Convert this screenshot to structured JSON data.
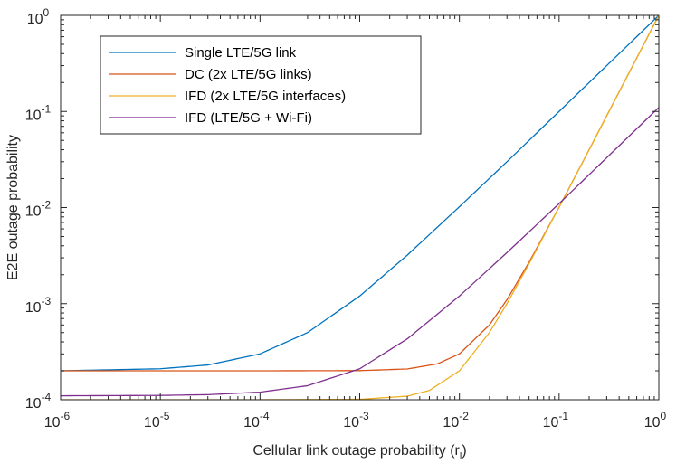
{
  "chart_data": {
    "type": "line",
    "title": "",
    "xlabel": "Cellular link outage probability (r",
    "xlabel_subscript": "l",
    "xlabel_suffix": ")",
    "ylabel": "E2E outage probability",
    "xscale": "log",
    "yscale": "log",
    "xlim": [
      1e-06,
      1
    ],
    "ylim": [
      0.0001,
      1
    ],
    "grid": false,
    "legend_position": "top-left",
    "x_ticks": [
      {
        "value": 1e-06,
        "base": "10",
        "exp": "-6"
      },
      {
        "value": 1e-05,
        "base": "10",
        "exp": "-5"
      },
      {
        "value": 0.0001,
        "base": "10",
        "exp": "-4"
      },
      {
        "value": 0.001,
        "base": "10",
        "exp": "-3"
      },
      {
        "value": 0.01,
        "base": "10",
        "exp": "-2"
      },
      {
        "value": 0.1,
        "base": "10",
        "exp": "-1"
      },
      {
        "value": 1,
        "base": "10",
        "exp": "0"
      }
    ],
    "y_ticks": [
      {
        "value": 0.0001,
        "base": "10",
        "exp": "-4"
      },
      {
        "value": 0.001,
        "base": "10",
        "exp": "-3"
      },
      {
        "value": 0.01,
        "base": "10",
        "exp": "-2"
      },
      {
        "value": 0.1,
        "base": "10",
        "exp": "-1"
      },
      {
        "value": 1,
        "base": "10",
        "exp": "0"
      }
    ],
    "series": [
      {
        "name": "Single LTE/5G link",
        "color": "#0072BD",
        "x": [
          1e-06,
          1e-05,
          3e-05,
          0.0001,
          0.0003,
          0.001,
          0.003,
          0.01,
          0.03,
          0.1,
          0.3,
          1
        ],
        "y": [
          0.0002,
          0.00021,
          0.00023,
          0.0003,
          0.0005,
          0.0012,
          0.0032,
          0.0102,
          0.03,
          0.1,
          0.3,
          1.0
        ]
      },
      {
        "name": "DC (2x LTE/5G links)",
        "color": "#D95319",
        "x": [
          1e-06,
          0.0001,
          0.001,
          0.003,
          0.006,
          0.01,
          0.02,
          0.03,
          0.05,
          0.1,
          0.2,
          0.3,
          0.5,
          1
        ],
        "y": [
          0.0002,
          0.0002,
          0.000201,
          0.000209,
          0.000236,
          0.0003,
          0.0006,
          0.0011,
          0.0027,
          0.0101,
          0.04,
          0.09,
          0.25,
          1.0
        ]
      },
      {
        "name": "IFD (2x LTE/5G interfaces)",
        "color": "#EDB120",
        "x": [
          1e-06,
          0.0001,
          0.001,
          0.003,
          0.005,
          0.01,
          0.02,
          0.03,
          0.05,
          0.1,
          0.2,
          0.3,
          0.5,
          1
        ],
        "y": [
          0.0001,
          0.0001,
          0.000101,
          0.000109,
          0.000125,
          0.0002,
          0.0005,
          0.001,
          0.0026,
          0.0101,
          0.04,
          0.09,
          0.25,
          1.0
        ]
      },
      {
        "name": "IFD (LTE/5G + Wi-Fi)",
        "color": "#7E2F8E",
        "x": [
          1e-06,
          1e-05,
          3e-05,
          0.0001,
          0.0003,
          0.001,
          0.003,
          0.01,
          0.03,
          0.1,
          0.3,
          1
        ],
        "y": [
          0.00011,
          0.000111,
          0.000113,
          0.00012,
          0.00014,
          0.00021,
          0.00043,
          0.0012,
          0.0034,
          0.011,
          0.033,
          0.11
        ]
      }
    ]
  }
}
